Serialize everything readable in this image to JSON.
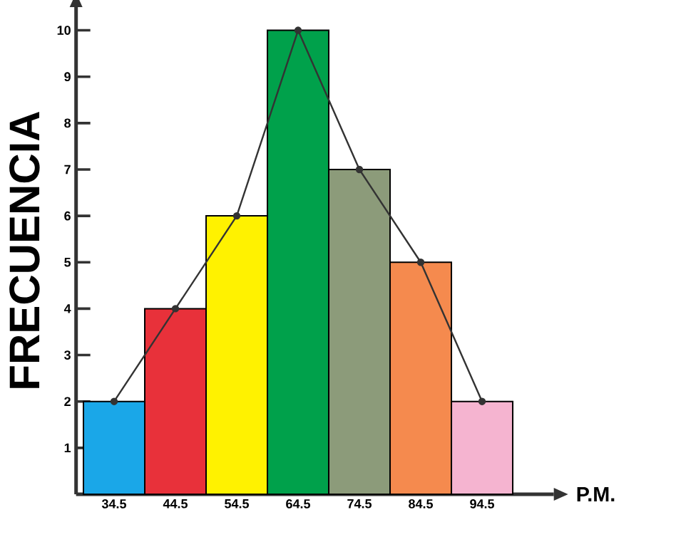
{
  "chart_data": {
    "type": "bar",
    "xlabel": "P.M.",
    "ylabel": "FRECUENCIA",
    "categories": [
      "34.5",
      "44.5",
      "54.5",
      "64.5",
      "74.5",
      "84.5",
      "94.5"
    ],
    "series": [
      {
        "values": [
          2,
          4,
          6,
          10,
          7,
          5,
          2
        ],
        "colors": [
          "#1aa7e8",
          "#e8313a",
          "#fff200",
          "#00a14b",
          "#8c9b7a",
          "#f58a4e",
          "#f5b4d0"
        ]
      },
      {
        "type": "line",
        "values": [
          2,
          4,
          6,
          10,
          7,
          5,
          2
        ],
        "color": "#333333",
        "marker": "circle"
      }
    ],
    "ylim": [
      0,
      10.5
    ],
    "yticks": [
      1,
      2,
      3,
      4,
      5,
      6,
      7,
      8,
      9,
      10
    ]
  }
}
